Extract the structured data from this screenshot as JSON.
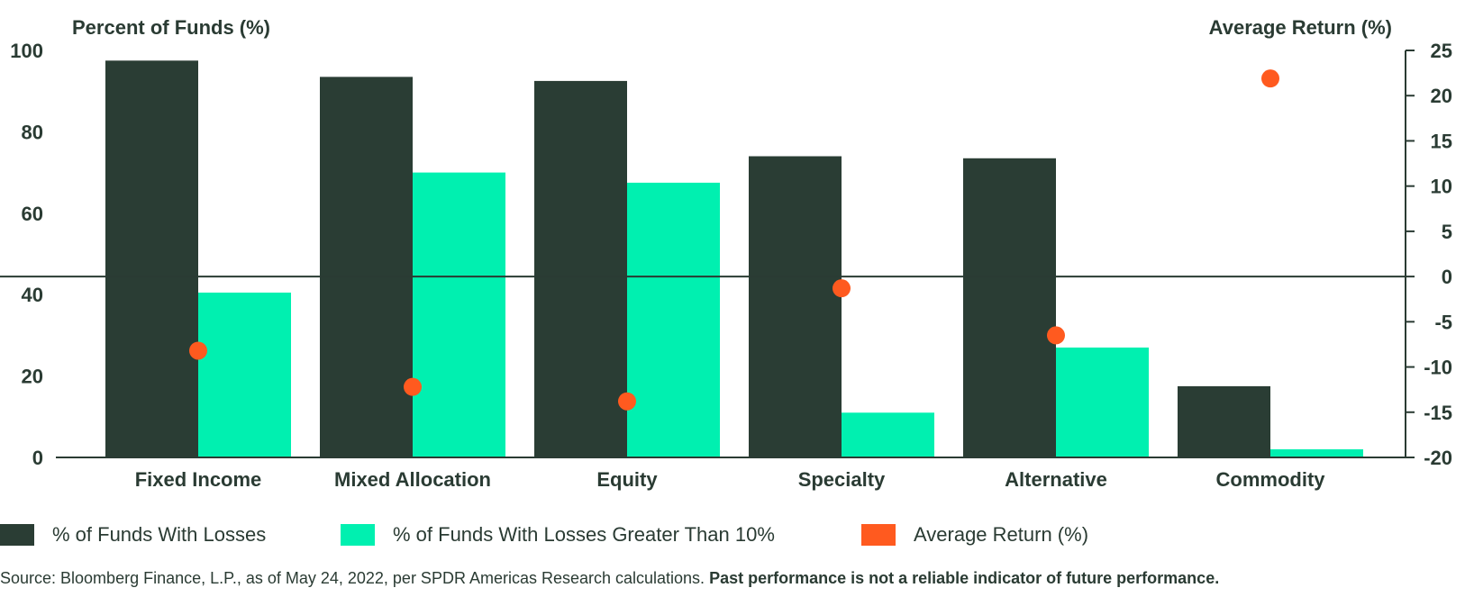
{
  "chart_data": {
    "type": "bar",
    "left_axis_title": "Percent of Funds (%)",
    "right_axis_title": "Average Return (%)",
    "categories": [
      "Fixed Income",
      "Mixed Allocation",
      "Equity",
      "Specialty",
      "Alternative",
      "Commodity"
    ],
    "y_left": {
      "min": 0,
      "max": 100,
      "ticks": [
        "0",
        "20",
        "40",
        "60",
        "80",
        "100"
      ]
    },
    "y_right": {
      "min": -20,
      "max": 25,
      "ticks": [
        "-20",
        "-15",
        "-10",
        "-5",
        "0",
        "5",
        "10",
        "15",
        "20",
        "25"
      ]
    },
    "series": [
      {
        "name": "% of Funds With Losses",
        "axis": "left",
        "kind": "bar",
        "color": "#2a3d34",
        "values": [
          97.5,
          93.5,
          92.5,
          74,
          73.5,
          17.5
        ]
      },
      {
        "name": "% of Funds With Losses Greater Than 10%",
        "axis": "left",
        "kind": "bar",
        "color": "#00f0b0",
        "values": [
          40.5,
          70,
          67.5,
          11,
          27,
          2
        ]
      },
      {
        "name": "Average Return (%)",
        "axis": "right",
        "kind": "point",
        "color": "#ff5a1f",
        "values": [
          -8.2,
          -12.2,
          -13.8,
          -1.3,
          -6.5,
          21.9
        ]
      }
    ],
    "legend_position": "bottom",
    "grid": false
  },
  "source": {
    "text": "Source: Bloomberg Finance, L.P., as of May 24, 2022, per SPDR Americas Research calculations. ",
    "bold": "Past performance is not a reliable indicator of future performance."
  }
}
